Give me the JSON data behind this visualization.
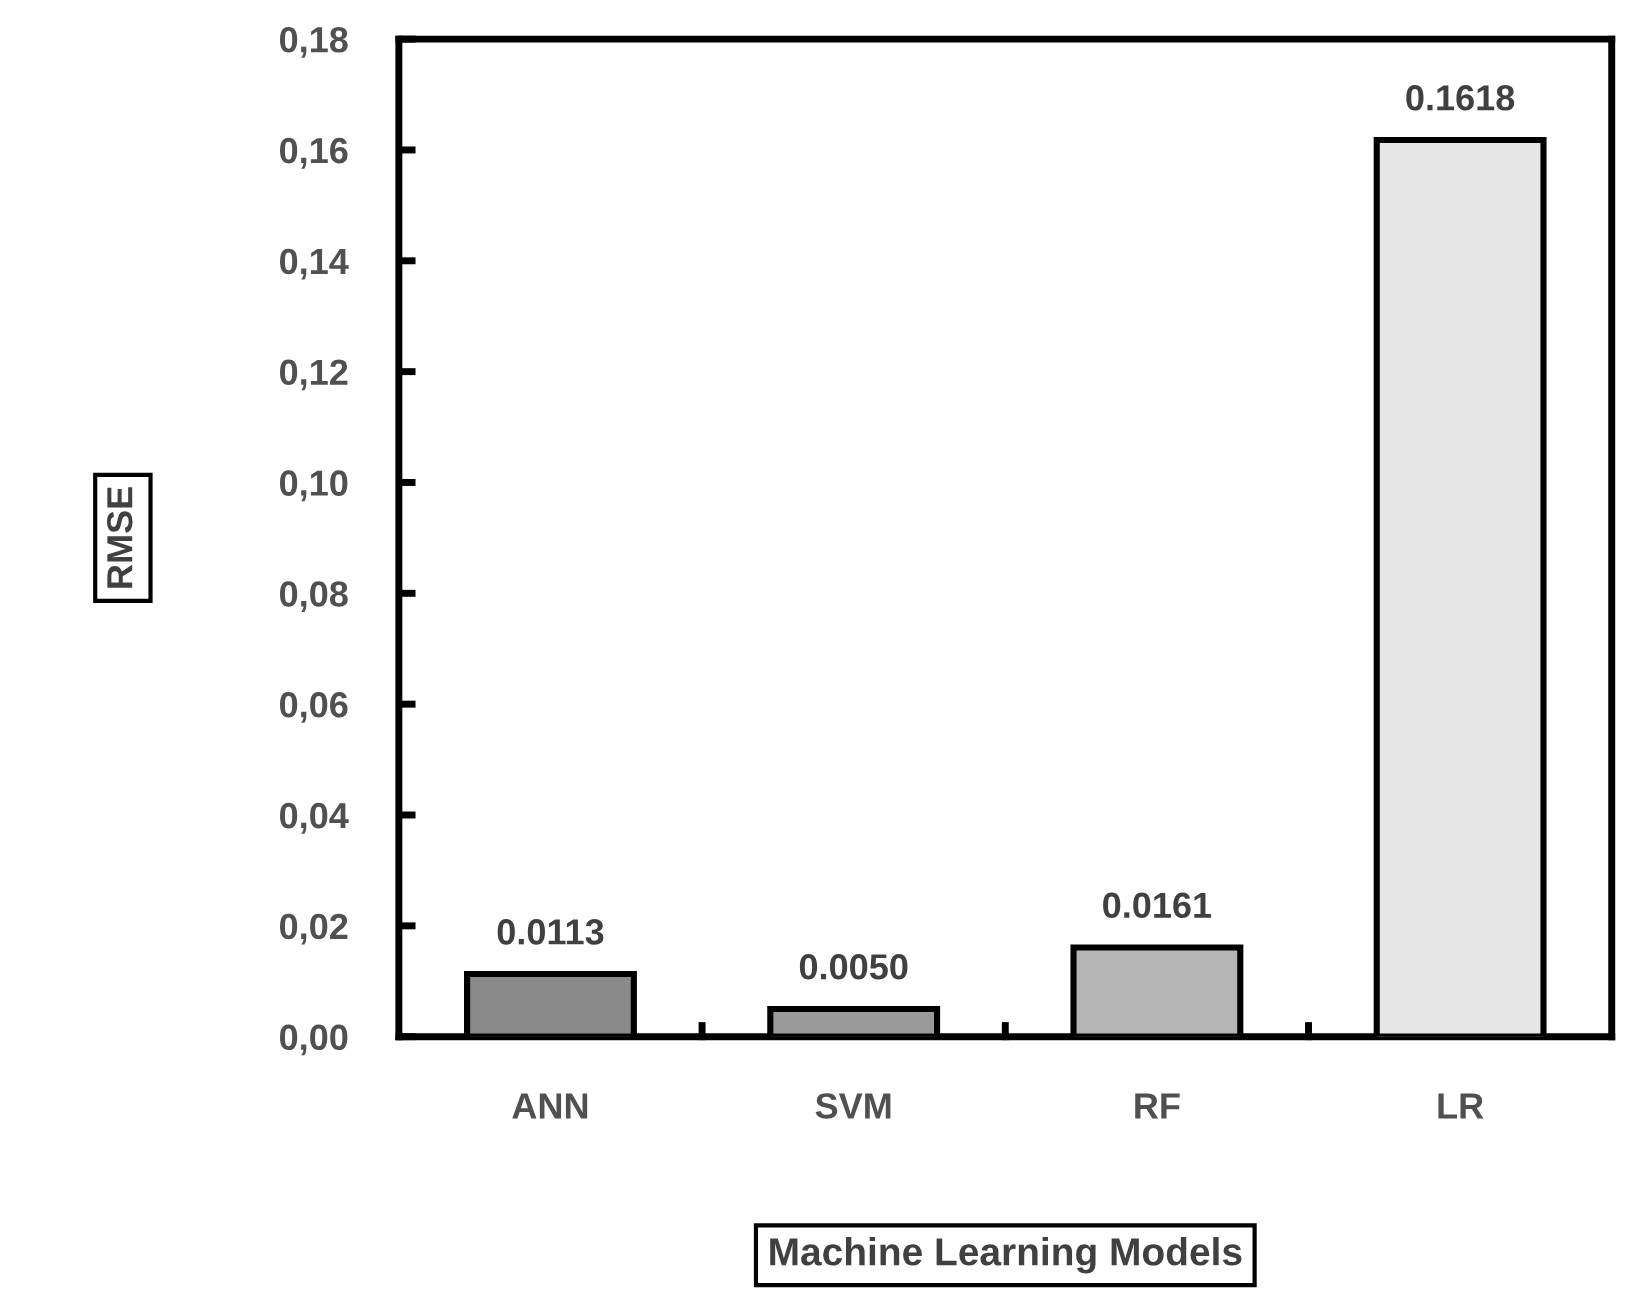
{
  "chart_data": {
    "type": "bar",
    "xlabel": "Machine Learning Models",
    "ylabel": "RMSE",
    "categories": [
      "ANN",
      "SVM",
      "RF",
      "LR"
    ],
    "values": [
      0.0113,
      0.005,
      0.0161,
      0.1618
    ],
    "value_labels": [
      "0.0113",
      "0.0050",
      "0.0161",
      "0.1618"
    ],
    "colors": [
      "#8a8a8a",
      "#9a9a9a",
      "#b4b4b4",
      "#e6e6e6"
    ],
    "ylim": [
      0,
      0.18
    ],
    "yticks": [
      {
        "value": 0,
        "label": "0,00"
      },
      {
        "value": 0.02,
        "label": "0,02"
      },
      {
        "value": 0.04,
        "label": "0,04"
      },
      {
        "value": 0.06,
        "label": "0,06"
      },
      {
        "value": 0.08,
        "label": "0,08"
      },
      {
        "value": 0.1,
        "label": "0,10"
      },
      {
        "value": 0.12,
        "label": "0,12"
      },
      {
        "value": 0.14,
        "label": "0,14"
      },
      {
        "value": 0.16,
        "label": "0,16"
      },
      {
        "value": 0.18,
        "label": "0,18"
      }
    ],
    "grid": false,
    "legend": false
  }
}
